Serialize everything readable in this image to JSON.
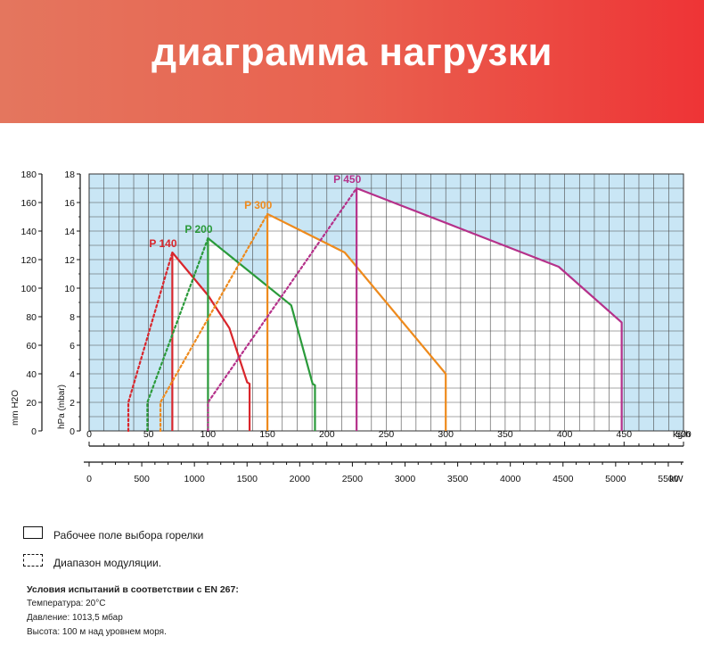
{
  "header": {
    "title": "диаграмма нагрузки"
  },
  "chart_data": {
    "type": "line",
    "title": "",
    "xlabel": "kg/h",
    "x2label": "kW",
    "ylabel": "hPa (mbar)",
    "y2label": "mm H2O",
    "xlim": [
      0,
      500
    ],
    "ylim": [
      0,
      18
    ],
    "x_ticks": [
      0,
      50,
      100,
      150,
      200,
      250,
      300,
      350,
      400,
      450,
      500
    ],
    "kw_ticks": [
      0,
      500,
      1000,
      1500,
      2000,
      2500,
      3000,
      3500,
      4000,
      4500,
      5000,
      5500
    ],
    "y_ticks": [
      0,
      2,
      4,
      6,
      8,
      10,
      12,
      14,
      16,
      18
    ],
    "mm_ticks": [
      0,
      20,
      40,
      60,
      80,
      100,
      120,
      140,
      160,
      180
    ],
    "grid": true,
    "series": [
      {
        "name": "P 140",
        "color": "#d9262c",
        "working_field": [
          [
            70,
            0
          ],
          [
            70,
            12.5
          ],
          [
            100,
            9.5
          ],
          [
            118,
            7.2
          ],
          [
            133,
            3.4
          ],
          [
            135,
            3.3
          ],
          [
            135,
            0
          ]
        ],
        "modulation_range": [
          [
            33,
            0
          ],
          [
            33,
            2
          ],
          [
            70,
            12.5
          ]
        ]
      },
      {
        "name": "P 200",
        "color": "#2a9a3a",
        "working_field": [
          [
            100,
            0
          ],
          [
            100,
            13.5
          ],
          [
            170,
            8.8
          ],
          [
            188,
            3.3
          ],
          [
            190,
            3.2
          ],
          [
            190,
            0
          ]
        ],
        "modulation_range": [
          [
            49,
            0
          ],
          [
            49,
            2
          ],
          [
            100,
            13.5
          ]
        ]
      },
      {
        "name": "P 300",
        "color": "#ee8a1c",
        "working_field": [
          [
            150,
            0
          ],
          [
            150,
            15.2
          ],
          [
            215,
            12.5
          ],
          [
            300,
            4
          ],
          [
            300,
            0
          ]
        ],
        "modulation_range": [
          [
            60,
            0
          ],
          [
            60,
            2
          ],
          [
            150,
            15.2
          ]
        ]
      },
      {
        "name": "P 450",
        "color": "#b5318a",
        "working_field": [
          [
            225,
            0
          ],
          [
            225,
            17
          ],
          [
            395,
            11.5
          ],
          [
            448,
            7.6
          ],
          [
            448,
            0
          ]
        ],
        "modulation_range": [
          [
            100,
            0
          ],
          [
            100,
            2
          ],
          [
            225,
            17
          ]
        ]
      }
    ]
  },
  "legend": {
    "working_field": "Рабочее поле выбора горелки",
    "modulation": "Диапазон модуляции."
  },
  "conditions": {
    "title": "Условия испытаний в соответствии с EN 267:",
    "temperature": "Температура: 20°C",
    "pressure": "Давление: 1013,5 мбар",
    "altitude": "Высота: 100 м над уровнем моря."
  }
}
